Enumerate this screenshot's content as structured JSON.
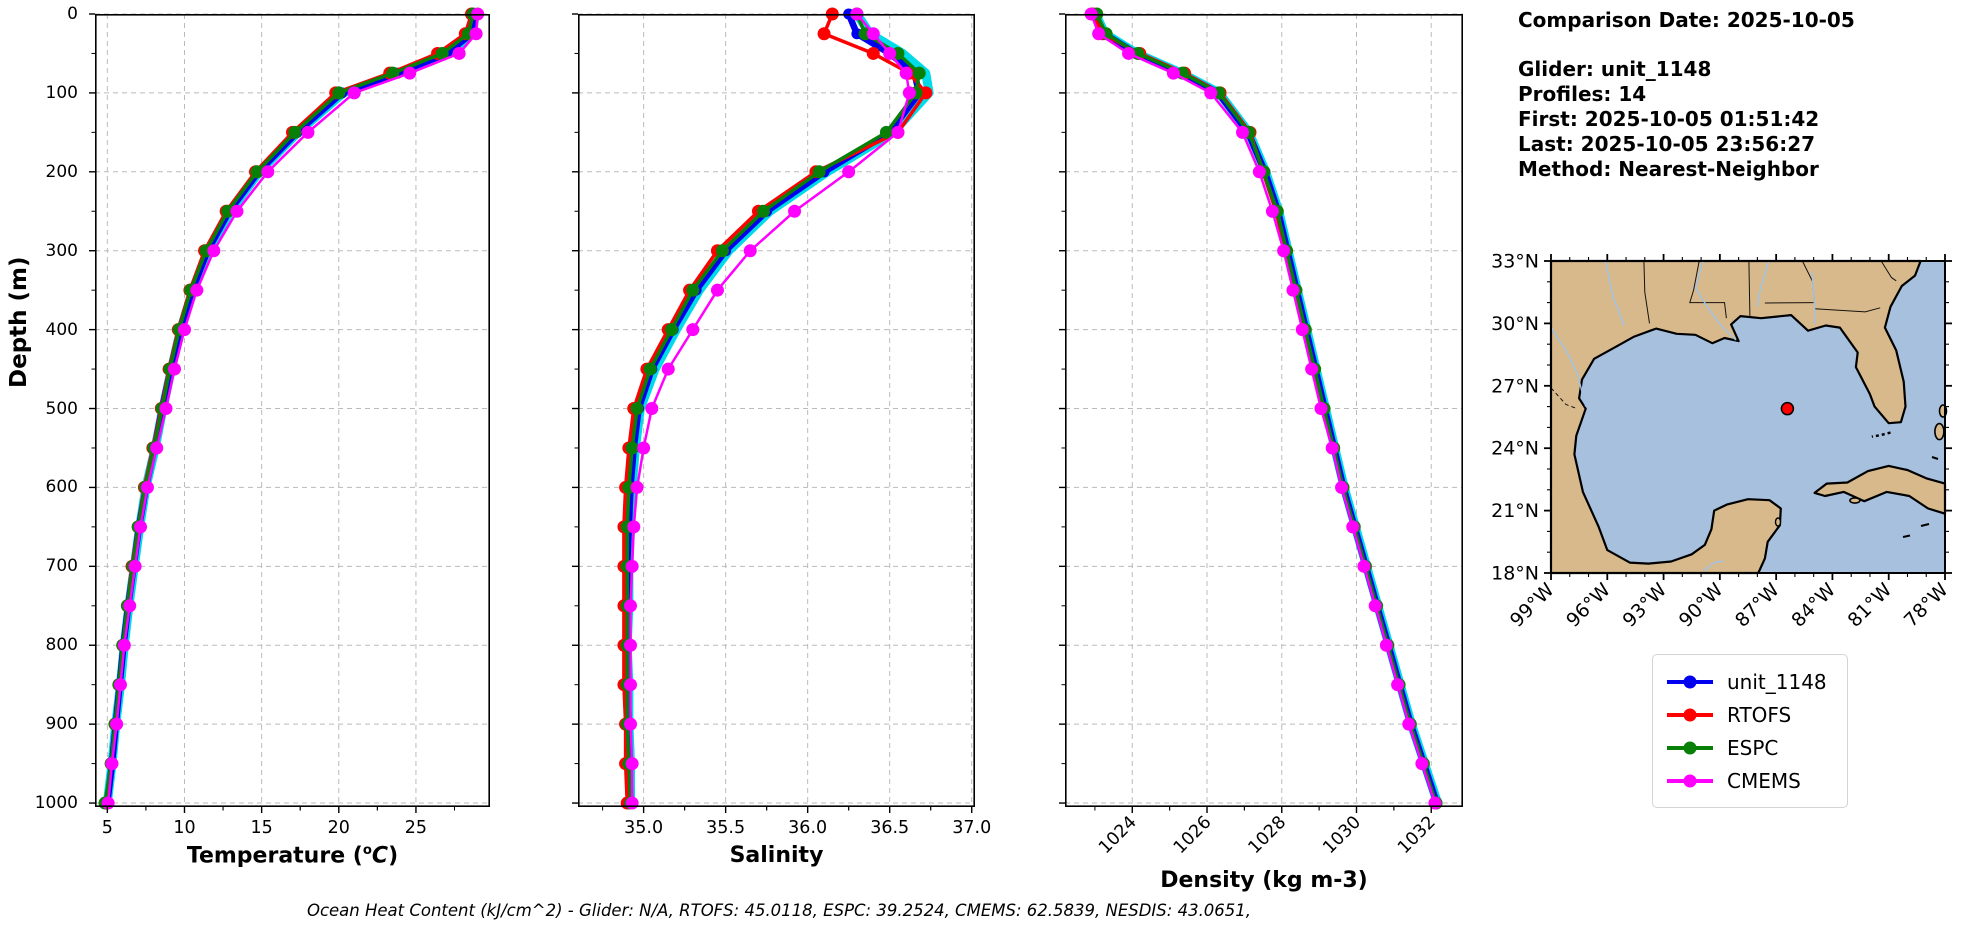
{
  "info": {
    "comparison_date": "Comparison Date: 2025-10-05",
    "glider": "Glider: unit_1148",
    "profiles": "Profiles: 14",
    "first": "First: 2025-10-05 01:51:42",
    "last": "Last: 2025-10-05 23:56:27",
    "method": "Method: Nearest-Neighbor"
  },
  "footer": {
    "ohc_text": "Ocean Heat Content (kJ/cm^2) - Glider: N/A,  RTOFS: 45.0118,  ESPC: 39.2524,  CMEMS: 62.5839,  NESDIS: 43.0651,"
  },
  "axes": {
    "temp_label_prefix": "Temperature (",
    "temp_label_sup": "o",
    "temp_label_c": "C",
    "temp_label_suffix": ")"
  },
  "legend": {
    "entries": [
      {
        "label": "unit_1148",
        "color": "#0000f0"
      },
      {
        "label": "RTOFS",
        "color": "#ff0000"
      },
      {
        "label": "ESPC",
        "color": "#088008"
      },
      {
        "label": "CMEMS",
        "color": "#ff00ff"
      }
    ]
  },
  "map": {
    "extent": {
      "lon_west": 99,
      "lon_east": 78,
      "lat_south": 18,
      "lat_north": 33
    },
    "lat_tick_values": [
      33,
      30,
      27,
      24,
      21,
      18
    ],
    "lat_tick_labels": [
      "33°N",
      "30°N",
      "27°N",
      "24°N",
      "21°N",
      "18°N"
    ],
    "lon_tick_values": [
      99,
      96,
      93,
      90,
      87,
      84,
      81,
      78
    ],
    "lon_tick_labels": [
      "99°W",
      "96°W",
      "93°W",
      "90°W",
      "87°W",
      "84°W",
      "81°W",
      "78°W"
    ],
    "marker": {
      "lon": 86.4,
      "lat": 25.9,
      "color": "#ff0000"
    },
    "land_color": "#d8b98c",
    "water_color": "#a6c0dd"
  },
  "chart_data": [
    {
      "type": "line",
      "xlabel": "Temperature (°C)",
      "ylabel": "Depth (m)",
      "xlim": [
        4.2,
        29.8
      ],
      "ylim": [
        0,
        1005
      ],
      "xticks": [
        5,
        10,
        15,
        20,
        25
      ],
      "yticks": [
        0,
        100,
        200,
        300,
        400,
        500,
        600,
        700,
        800,
        900,
        1000
      ],
      "grid": true,
      "xtick_rotate": false,
      "depths": [
        0,
        25,
        50,
        75,
        100,
        150,
        200,
        250,
        300,
        350,
        400,
        450,
        500,
        550,
        600,
        650,
        700,
        750,
        800,
        850,
        900,
        950,
        1000
      ],
      "series": [
        {
          "name": "glider-profiles-raw",
          "color": "#00dbe8",
          "width": 9,
          "marker": 0,
          "values": [
            28.85,
            28.65,
            27.1,
            23.9,
            20.3,
            17.35,
            14.85,
            12.95,
            11.55,
            10.55,
            9.75,
            9.15,
            8.6,
            8.1,
            7.5,
            7.1,
            6.75,
            6.4,
            6.1,
            5.85,
            5.55,
            5.3,
            5.0
          ]
        },
        {
          "name": "unit_1148",
          "color": "#0000f0",
          "width": 6.5,
          "marker": 5.5,
          "values": [
            28.8,
            28.6,
            27.0,
            23.8,
            20.2,
            17.3,
            14.8,
            12.9,
            11.5,
            10.5,
            9.7,
            9.1,
            8.55,
            8.05,
            7.5,
            7.05,
            6.7,
            6.35,
            6.05,
            5.8,
            5.55,
            5.3,
            5.0
          ]
        },
        {
          "name": "RTOFS",
          "color": "#ff0000",
          "width": 3.5,
          "marker": 6.5,
          "values": [
            28.6,
            28.2,
            26.4,
            23.3,
            19.8,
            17.0,
            14.6,
            12.7,
            11.3,
            10.35,
            9.6,
            9.0,
            8.5,
            7.95,
            7.4,
            7.0,
            6.6,
            6.3,
            6.0,
            5.75,
            5.5,
            5.25,
            4.95
          ]
        },
        {
          "name": "ESPC",
          "color": "#088008",
          "width": 3.5,
          "marker": 6.5,
          "values": [
            28.7,
            28.4,
            26.7,
            23.5,
            20.0,
            17.15,
            14.7,
            12.8,
            11.4,
            10.4,
            9.65,
            9.05,
            8.55,
            8.0,
            7.45,
            7.0,
            6.65,
            6.3,
            6.0,
            5.75,
            5.5,
            5.25,
            4.85
          ]
        },
        {
          "name": "CMEMS",
          "color": "#ff00ff",
          "width": 2.5,
          "marker": 6.5,
          "values": [
            29.0,
            28.9,
            27.8,
            24.6,
            21.0,
            18.0,
            15.4,
            13.4,
            11.9,
            10.8,
            10.0,
            9.35,
            8.8,
            8.2,
            7.6,
            7.15,
            6.8,
            6.45,
            6.1,
            5.85,
            5.6,
            5.3,
            5.05
          ]
        }
      ]
    },
    {
      "type": "line",
      "xlabel": "Salinity",
      "ylabel": "Depth (m)",
      "xlim": [
        34.6,
        37.02
      ],
      "ylim": [
        0,
        1005
      ],
      "xticks": [
        35.0,
        35.5,
        36.0,
        36.5,
        37.0
      ],
      "yticks": [
        0,
        100,
        200,
        300,
        400,
        500,
        600,
        700,
        800,
        900,
        1000
      ],
      "grid": true,
      "xtick_rotate": false,
      "depths": [
        0,
        25,
        50,
        75,
        100,
        150,
        200,
        250,
        300,
        350,
        400,
        450,
        500,
        550,
        600,
        650,
        700,
        750,
        800,
        850,
        900,
        950,
        1000
      ],
      "series": [
        {
          "name": "glider-profiles-raw",
          "color": "#00dbe8",
          "width": 9,
          "marker": 0,
          "values": [
            36.3,
            36.38,
            36.58,
            36.72,
            36.74,
            36.52,
            36.12,
            35.77,
            35.52,
            35.34,
            35.2,
            35.07,
            34.98,
            34.95,
            34.93,
            34.92,
            34.91,
            34.91,
            34.9,
            34.91,
            34.91,
            34.92,
            34.92
          ]
        },
        {
          "name": "unit_1148",
          "color": "#0000f0",
          "width": 6.5,
          "marker": 5.5,
          "values": [
            36.25,
            36.3,
            36.5,
            36.65,
            36.68,
            36.5,
            36.1,
            35.75,
            35.5,
            35.32,
            35.18,
            35.05,
            34.97,
            34.94,
            34.92,
            34.91,
            34.9,
            34.9,
            34.9,
            34.9,
            34.91,
            34.91,
            34.92
          ]
        },
        {
          "name": "RTOFS",
          "color": "#ff0000",
          "width": 3.5,
          "marker": 6.5,
          "values": [
            36.15,
            36.1,
            36.4,
            36.62,
            36.72,
            36.55,
            36.05,
            35.7,
            35.45,
            35.28,
            35.15,
            35.02,
            34.94,
            34.91,
            34.89,
            34.88,
            34.88,
            34.88,
            34.88,
            34.88,
            34.89,
            34.89,
            34.9
          ]
        },
        {
          "name": "ESPC",
          "color": "#088008",
          "width": 3.5,
          "marker": 6.5,
          "values": [
            36.3,
            36.35,
            36.55,
            36.68,
            36.66,
            36.48,
            36.07,
            35.73,
            35.48,
            35.3,
            35.17,
            35.04,
            34.96,
            34.93,
            34.91,
            34.9,
            34.9,
            34.9,
            34.9,
            34.9,
            34.9,
            34.91,
            34.92
          ]
        },
        {
          "name": "CMEMS",
          "color": "#ff00ff",
          "width": 2.5,
          "marker": 6.5,
          "values": [
            36.3,
            36.4,
            36.5,
            36.6,
            36.62,
            36.55,
            36.25,
            35.92,
            35.65,
            35.45,
            35.3,
            35.15,
            35.05,
            35.0,
            34.96,
            34.94,
            34.93,
            34.92,
            34.92,
            34.92,
            34.92,
            34.93,
            34.93
          ]
        }
      ]
    },
    {
      "type": "line",
      "xlabel": "Density (kg m-3)",
      "ylabel": "Depth (m)",
      "xlim": [
        1022.2,
        1032.85
      ],
      "ylim": [
        0,
        1005
      ],
      "xticks": [
        1024,
        1026,
        1028,
        1030,
        1032
      ],
      "yticks": [
        0,
        100,
        200,
        300,
        400,
        500,
        600,
        700,
        800,
        900,
        1000
      ],
      "grid": true,
      "xtick_rotate": true,
      "depths": [
        0,
        25,
        50,
        75,
        100,
        150,
        200,
        250,
        300,
        350,
        400,
        450,
        500,
        550,
        600,
        650,
        700,
        750,
        800,
        850,
        900,
        950,
        1000
      ],
      "series": [
        {
          "name": "glider-profiles-raw",
          "color": "#00dbe8",
          "width": 9,
          "marker": 0,
          "values": [
            1023.02,
            1023.27,
            1024.12,
            1025.32,
            1026.32,
            1027.12,
            1027.57,
            1027.92,
            1028.17,
            1028.42,
            1028.67,
            1028.92,
            1029.17,
            1029.42,
            1029.67,
            1029.97,
            1030.27,
            1030.57,
            1030.87,
            1031.17,
            1031.47,
            1031.82,
            1032.17
          ]
        },
        {
          "name": "unit_1148",
          "color": "#0000f0",
          "width": 6.5,
          "marker": 5.5,
          "values": [
            1023.0,
            1023.25,
            1024.1,
            1025.3,
            1026.3,
            1027.1,
            1027.55,
            1027.9,
            1028.15,
            1028.4,
            1028.65,
            1028.9,
            1029.15,
            1029.4,
            1029.65,
            1029.95,
            1030.25,
            1030.55,
            1030.85,
            1031.15,
            1031.45,
            1031.8,
            1032.15
          ]
        },
        {
          "name": "RTOFS",
          "color": "#ff0000",
          "width": 3.5,
          "marker": 6.5,
          "values": [
            1022.95,
            1023.2,
            1024.2,
            1025.4,
            1026.35,
            1027.15,
            1027.5,
            1027.85,
            1028.1,
            1028.35,
            1028.6,
            1028.85,
            1029.1,
            1029.38,
            1029.63,
            1029.93,
            1030.22,
            1030.52,
            1030.83,
            1031.13,
            1031.43,
            1031.78,
            1032.12
          ]
        },
        {
          "name": "ESPC",
          "color": "#088008",
          "width": 3.5,
          "marker": 6.5,
          "values": [
            1023.05,
            1023.3,
            1024.15,
            1025.35,
            1026.32,
            1027.12,
            1027.52,
            1027.88,
            1028.13,
            1028.38,
            1028.63,
            1028.88,
            1029.13,
            1029.39,
            1029.64,
            1029.94,
            1030.24,
            1030.54,
            1030.84,
            1031.14,
            1031.44,
            1031.79,
            1032.13
          ]
        },
        {
          "name": "CMEMS",
          "color": "#ff00ff",
          "width": 2.5,
          "marker": 6.5,
          "values": [
            1022.9,
            1023.1,
            1023.9,
            1025.1,
            1026.1,
            1026.95,
            1027.4,
            1027.75,
            1028.05,
            1028.3,
            1028.55,
            1028.8,
            1029.05,
            1029.35,
            1029.6,
            1029.9,
            1030.2,
            1030.5,
            1030.8,
            1031.1,
            1031.4,
            1031.75,
            1032.1
          ]
        }
      ]
    }
  ]
}
